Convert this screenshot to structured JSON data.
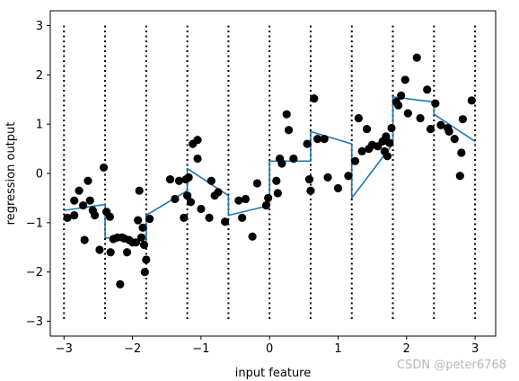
{
  "chart_data": {
    "type": "line+scatter",
    "xlabel": "input feature",
    "ylabel": "regression output",
    "xlim": [
      -3.2,
      3.3
    ],
    "ylim": [
      -3.3,
      3.3
    ],
    "xticks": [
      -3,
      -2,
      -1,
      0,
      1,
      2,
      3
    ],
    "yticks": [
      -3,
      -2,
      -1,
      0,
      1,
      2,
      3
    ],
    "xtick_labels": [
      "−3",
      "−2",
      "−1",
      "0",
      "1",
      "2",
      "3"
    ],
    "ytick_labels": [
      "−3",
      "−2",
      "−1",
      "0",
      "1",
      "2",
      "3"
    ],
    "grid": false,
    "colors": {
      "line": "#1f77b4",
      "points": "#000000",
      "bins": "#000000"
    },
    "bin_edges": [
      -3,
      -2.4,
      -1.8,
      -1.2,
      -0.6,
      0,
      0.6,
      1.2,
      1.8,
      2.4,
      3
    ],
    "bin_line_range": [
      -3,
      3
    ],
    "line": {
      "x": [
        -3,
        -2.4,
        -2.4,
        -1.8,
        -1.8,
        -1.2,
        -1.2,
        -0.6,
        -0.6,
        0,
        0,
        0.6,
        0.6,
        1.2,
        1.2,
        1.8,
        1.8,
        2.4,
        2.4,
        3
      ],
      "y": [
        -0.75,
        -0.63,
        -1.3,
        -1.45,
        -0.85,
        -0.35,
        0.1,
        -0.45,
        -0.85,
        -0.65,
        0.25,
        0.25,
        0.85,
        0.6,
        -0.5,
        0.6,
        1.55,
        1.45,
        1.2,
        0.65
      ]
    },
    "points": [
      [
        -2.95,
        -0.9
      ],
      [
        -2.85,
        -0.55
      ],
      [
        -2.78,
        -0.35
      ],
      [
        -2.85,
        -0.85
      ],
      [
        -2.72,
        -0.65
      ],
      [
        -2.7,
        -1.35
      ],
      [
        -2.65,
        -0.15
      ],
      [
        -2.62,
        -0.55
      ],
      [
        -2.58,
        -0.75
      ],
      [
        -2.55,
        -0.85
      ],
      [
        -2.48,
        -1.55
      ],
      [
        -2.42,
        0.12
      ],
      [
        -2.38,
        -0.78
      ],
      [
        -2.33,
        -0.88
      ],
      [
        -2.32,
        -1.6
      ],
      [
        -2.28,
        -1.33
      ],
      [
        -2.22,
        -1.3
      ],
      [
        -2.18,
        -2.25
      ],
      [
        -2.15,
        -1.3
      ],
      [
        -2.12,
        -1.32
      ],
      [
        -2.08,
        -1.6
      ],
      [
        -2.05,
        -1.35
      ],
      [
        -2.0,
        -1.4
      ],
      [
        -1.95,
        -1.4
      ],
      [
        -1.92,
        -0.95
      ],
      [
        -1.9,
        -0.35
      ],
      [
        -1.87,
        -1.3
      ],
      [
        -1.85,
        -1.1
      ],
      [
        -1.83,
        -1.45
      ],
      [
        -1.82,
        -2.0
      ],
      [
        -1.8,
        -1.75
      ],
      [
        -1.75,
        -0.92
      ],
      [
        -1.45,
        -0.12
      ],
      [
        -1.38,
        -0.52
      ],
      [
        -1.32,
        -0.15
      ],
      [
        -1.25,
        -0.9
      ],
      [
        -1.22,
        -0.12
      ],
      [
        -1.2,
        -0.45
      ],
      [
        -1.18,
        -0.08
      ],
      [
        -1.15,
        -0.58
      ],
      [
        -1.12,
        0.6
      ],
      [
        -1.05,
        0.68
      ],
      [
        -1.05,
        0.3
      ],
      [
        -1.0,
        -0.72
      ],
      [
        -0.88,
        -0.9
      ],
      [
        -0.85,
        -0.15
      ],
      [
        -0.8,
        -0.45
      ],
      [
        -0.75,
        -0.38
      ],
      [
        -0.65,
        -0.98
      ],
      [
        -0.45,
        -0.55
      ],
      [
        -0.4,
        -0.9
      ],
      [
        -0.35,
        -0.52
      ],
      [
        -0.25,
        -1.28
      ],
      [
        -0.18,
        -0.2
      ],
      [
        -0.05,
        -0.65
      ],
      [
        -0.02,
        -0.5
      ],
      [
        0.1,
        -0.15
      ],
      [
        0.12,
        -0.4
      ],
      [
        0.15,
        0.3
      ],
      [
        0.18,
        0.2
      ],
      [
        0.25,
        1.2
      ],
      [
        0.28,
        0.88
      ],
      [
        0.35,
        0.3
      ],
      [
        0.55,
        0.6
      ],
      [
        0.58,
        -0.12
      ],
      [
        0.6,
        -0.35
      ],
      [
        0.65,
        1.52
      ],
      [
        0.7,
        0.7
      ],
      [
        0.8,
        0.7
      ],
      [
        0.85,
        -0.08
      ],
      [
        1.0,
        -0.3
      ],
      [
        1.15,
        -0.05
      ],
      [
        1.25,
        0.25
      ],
      [
        1.3,
        1.12
      ],
      [
        1.35,
        0.45
      ],
      [
        1.42,
        0.9
      ],
      [
        1.45,
        0.5
      ],
      [
        1.5,
        0.58
      ],
      [
        1.58,
        0.55
      ],
      [
        1.65,
        0.65
      ],
      [
        1.68,
        0.45
      ],
      [
        1.7,
        0.75
      ],
      [
        1.72,
        0.35
      ],
      [
        1.75,
        0.62
      ],
      [
        1.78,
        0.92
      ],
      [
        1.85,
        1.45
      ],
      [
        1.88,
        1.38
      ],
      [
        1.92,
        1.58
      ],
      [
        1.98,
        1.9
      ],
      [
        2.02,
        1.22
      ],
      [
        2.15,
        2.35
      ],
      [
        2.2,
        1.12
      ],
      [
        2.3,
        1.7
      ],
      [
        2.35,
        0.9
      ],
      [
        2.42,
        1.42
      ],
      [
        2.5,
        0.98
      ],
      [
        2.6,
        0.92
      ],
      [
        2.62,
        0.85
      ],
      [
        2.7,
        0.7
      ],
      [
        2.78,
        -0.05
      ],
      [
        2.8,
        0.42
      ],
      [
        2.82,
        1.1
      ],
      [
        2.95,
        1.48
      ]
    ]
  },
  "watermark": "CSDN @peter6768"
}
